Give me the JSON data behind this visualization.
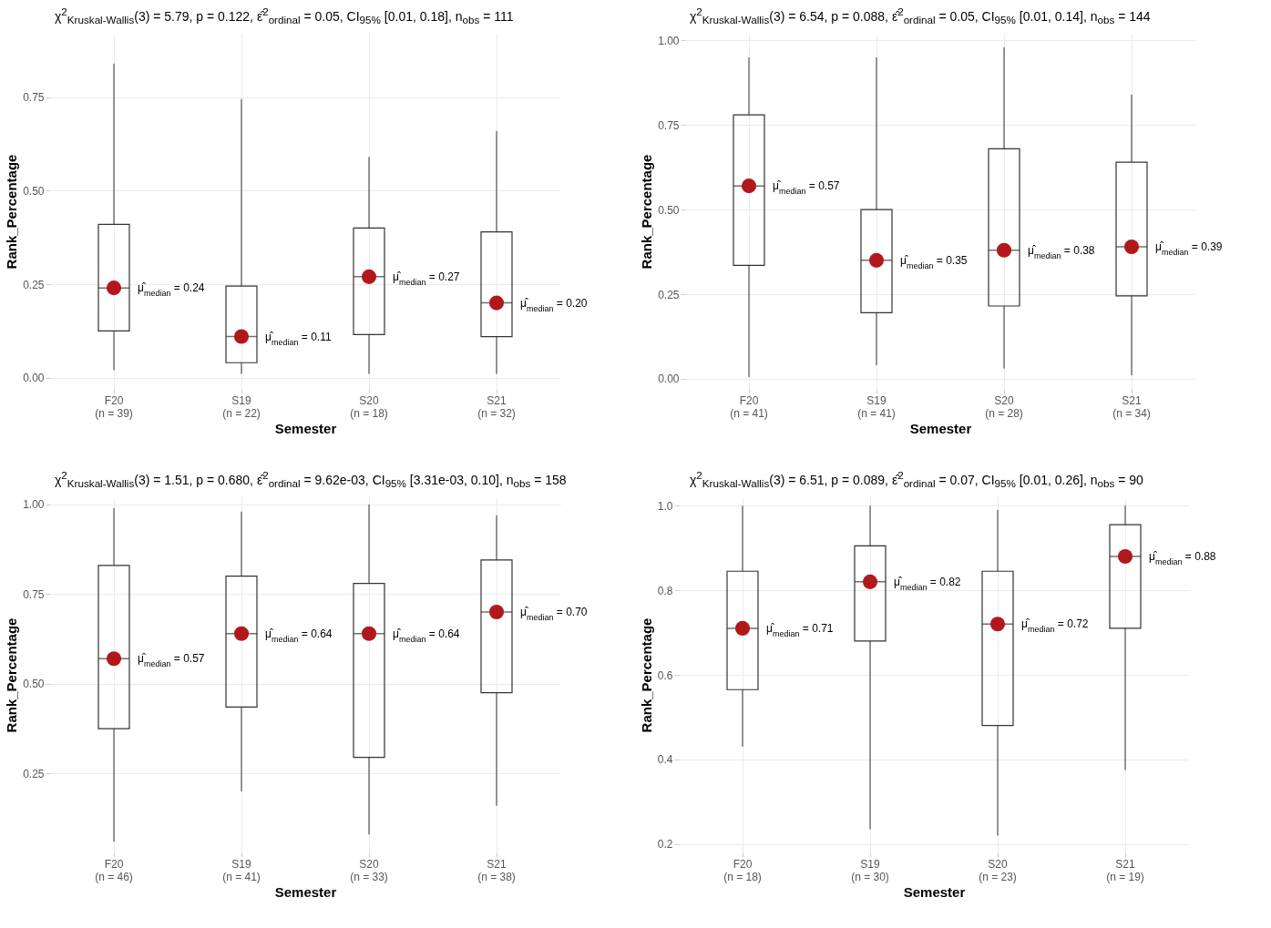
{
  "chart_data": [
    {
      "type": "box",
      "title": "χ$^{2}$$_{Kruskal-Wallis}$(3) = 5.79, p = 0.122, ε̂$^{2}$$_{ordinal}$ = 0.05, CI$_{95%}$ [0.01, 0.18], n$_{obs}$ = 111",
      "xlabel": "Semester",
      "ylabel": "Rank_Percentage",
      "categories": [
        "F20\n(n = 39)",
        "S19\n(n = 22)",
        "S20\n(n = 18)",
        "S21\n(n = 32)"
      ],
      "boxes": [
        {
          "low": 0.02,
          "q1": 0.125,
          "median": 0.24,
          "q3": 0.41,
          "high": 0.84
        },
        {
          "low": 0.01,
          "q1": 0.04,
          "median": 0.11,
          "q3": 0.245,
          "high": 0.745
        },
        {
          "low": 0.01,
          "q1": 0.115,
          "median": 0.27,
          "q3": 0.4,
          "high": 0.59
        },
        {
          "low": 0.01,
          "q1": 0.11,
          "median": 0.2,
          "q3": 0.39,
          "high": 0.66
        }
      ],
      "ylim": [
        -0.03,
        0.92
      ],
      "yticks": [
        {
          "value": 0,
          "label": "0.00"
        },
        {
          "value": 0.25,
          "label": "0.25"
        },
        {
          "value": 0.5,
          "label": "0.50"
        },
        {
          "value": 0.75,
          "label": "0.75"
        }
      ],
      "grid": true,
      "annotations": [
        {
          "text": "μ̂$_{median}$ = 0.24",
          "x": "F20\n(n = 39)",
          "y": 0.24
        },
        {
          "text": "μ̂$_{median}$ = 0.11",
          "x": "S19\n(n = 22)",
          "y": 0.11
        },
        {
          "text": "μ̂$_{median}$ = 0.27",
          "x": "S20\n(n = 18)",
          "y": 0.27
        },
        {
          "text": "μ̂$_{median}$ = 0.20",
          "x": "S21\n(n = 32)",
          "y": 0.2
        }
      ]
    },
    {
      "type": "box",
      "title": "χ$^{2}$$_{Kruskal-Wallis}$(3) = 6.54, p = 0.088, ε̂$^{2}$$_{ordinal}$ = 0.05, CI$_{95%}$ [0.01, 0.14], n$_{obs}$ = 144",
      "xlabel": "Semester",
      "ylabel": "Rank_Percentage",
      "categories": [
        "F20\n(n = 41)",
        "S19\n(n = 41)",
        "S20\n(n = 28)",
        "S21\n(n = 34)"
      ],
      "boxes": [
        {
          "low": 0.005,
          "q1": 0.335,
          "median": 0.57,
          "q3": 0.78,
          "high": 0.95
        },
        {
          "low": 0.04,
          "q1": 0.195,
          "median": 0.35,
          "q3": 0.5,
          "high": 0.95
        },
        {
          "low": 0.03,
          "q1": 0.215,
          "median": 0.38,
          "q3": 0.68,
          "high": 0.98
        },
        {
          "low": 0.01,
          "q1": 0.245,
          "median": 0.39,
          "q3": 0.64,
          "high": 0.84
        }
      ],
      "ylim": [
        -0.03,
        1.02
      ],
      "yticks": [
        {
          "value": 0,
          "label": "0.00"
        },
        {
          "value": 0.25,
          "label": "0.25"
        },
        {
          "value": 0.5,
          "label": "0.50"
        },
        {
          "value": 0.75,
          "label": "0.75"
        },
        {
          "value": 1,
          "label": "1.00"
        }
      ],
      "grid": true,
      "annotations": [
        {
          "text": "μ̂$_{median}$ = 0.57",
          "x": "F20\n(n = 41)",
          "y": 0.57
        },
        {
          "text": "μ̂$_{median}$ = 0.35",
          "x": "S19\n(n = 41)",
          "y": 0.35
        },
        {
          "text": "μ̂$_{median}$ = 0.38",
          "x": "S20\n(n = 28)",
          "y": 0.38
        },
        {
          "text": "μ̂$_{median}$ = 0.39",
          "x": "S21\n(n = 34)",
          "y": 0.39
        }
      ]
    },
    {
      "type": "box",
      "title": "χ$^{2}$$_{Kruskal-Wallis}$(3) = 1.51, p = 0.680, ε̂$^{2}$$_{ordinal}$ = 9.62e-03, CI$_{95%}$ [3.31e-03, 0.10], n$_{obs}$ = 158",
      "xlabel": "Semester",
      "ylabel": "Rank_Percentage",
      "categories": [
        "F20\n(n = 46)",
        "S19\n(n = 41)",
        "S20\n(n = 33)",
        "S21\n(n = 38)"
      ],
      "boxes": [
        {
          "low": 0.06,
          "q1": 0.375,
          "median": 0.57,
          "q3": 0.83,
          "high": 0.99
        },
        {
          "low": 0.2,
          "q1": 0.435,
          "median": 0.64,
          "q3": 0.8,
          "high": 0.98
        },
        {
          "low": 0.08,
          "q1": 0.295,
          "median": 0.64,
          "q3": 0.78,
          "high": 1.0
        },
        {
          "low": 0.16,
          "q1": 0.475,
          "median": 0.7,
          "q3": 0.845,
          "high": 0.97
        }
      ],
      "ylim": [
        0.03,
        1.02
      ],
      "yticks": [
        {
          "value": 0.25,
          "label": "0.25"
        },
        {
          "value": 0.5,
          "label": "0.50"
        },
        {
          "value": 0.75,
          "label": "0.75"
        },
        {
          "value": 1,
          "label": "1.00"
        }
      ],
      "grid": true,
      "annotations": [
        {
          "text": "μ̂$_{median}$ = 0.57",
          "x": "F20\n(n = 46)",
          "y": 0.57
        },
        {
          "text": "μ̂$_{median}$ = 0.64",
          "x": "S19\n(n = 41)",
          "y": 0.64
        },
        {
          "text": "μ̂$_{median}$ = 0.64",
          "x": "S20\n(n = 33)",
          "y": 0.64
        },
        {
          "text": "μ̂$_{median}$ = 0.70",
          "x": "S21\n(n = 38)",
          "y": 0.7
        }
      ]
    },
    {
      "type": "box",
      "title": "χ$^{2}$$_{Kruskal-Wallis}$(3) = 6.51, p = 0.089, ε̂$^{2}$$_{ordinal}$ = 0.07, CI$_{95%}$ [0.01, 0.26], n$_{obs}$ = 90",
      "xlabel": "Semester",
      "ylabel": "Rank_Percentage",
      "categories": [
        "F20\n(n = 18)",
        "S19\n(n = 30)",
        "S20\n(n = 23)",
        "S21\n(n = 19)"
      ],
      "boxes": [
        {
          "low": 0.43,
          "q1": 0.565,
          "median": 0.71,
          "q3": 0.845,
          "high": 1.0
        },
        {
          "low": 0.235,
          "q1": 0.68,
          "median": 0.82,
          "q3": 0.905,
          "high": 1.0
        },
        {
          "low": 0.22,
          "q1": 0.48,
          "median": 0.72,
          "q3": 0.845,
          "high": 0.99
        },
        {
          "low": 0.375,
          "q1": 0.71,
          "median": 0.88,
          "q3": 0.955,
          "high": 1.0
        }
      ],
      "ylim": [
        0.18,
        1.02
      ],
      "yticks": [
        {
          "value": 0.2,
          "label": "0.2"
        },
        {
          "value": 0.4,
          "label": "0.4"
        },
        {
          "value": 0.6,
          "label": "0.6"
        },
        {
          "value": 0.8,
          "label": "0.8"
        },
        {
          "value": 1,
          "label": "1.0"
        }
      ],
      "grid": true,
      "annotations": [
        {
          "text": "μ̂$_{median}$ = 0.71",
          "x": "F20\n(n = 18)",
          "y": 0.71
        },
        {
          "text": "μ̂$_{median}$ = 0.82",
          "x": "S19\n(n = 30)",
          "y": 0.82
        },
        {
          "text": "μ̂$_{median}$ = 0.72",
          "x": "S20\n(n = 23)",
          "y": 0.72
        },
        {
          "text": "μ̂$_{median}$ = 0.88",
          "x": "S21\n(n = 19)",
          "y": 0.88
        }
      ]
    }
  ]
}
